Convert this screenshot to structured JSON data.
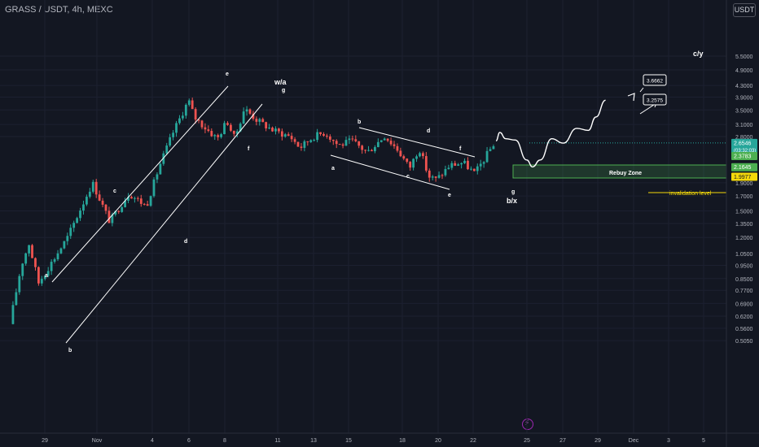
{
  "header": {
    "symbol_title": "GRASS / USDT, 4h, MEXC",
    "currency_button": "USDT"
  },
  "icons": {
    "event_marker": "bolt-icon"
  },
  "colors": {
    "background": "#131722",
    "grid": "#1c2030",
    "up_candle": "#26a69a",
    "down_candle": "#ef5350",
    "rebuy_zone": "#4caf50",
    "invalidation": "#f5d90a",
    "current_price": "#26a69a",
    "annotation": "#ffffff"
  },
  "chart_data": {
    "type": "candlestick",
    "scale": "log",
    "grid": true,
    "x_ticks": [
      "29",
      "Nov",
      "4",
      "6",
      "8",
      "11",
      "13",
      "15",
      "18",
      "20",
      "22",
      "25",
      "27",
      "29",
      "Dec",
      "3",
      "5"
    ],
    "y_ticks": [
      5.5,
      4.9,
      4.3,
      3.9,
      3.5,
      3.1,
      2.8,
      1.9,
      1.7,
      1.5,
      1.35,
      1.2,
      1.05,
      0.95,
      0.85,
      0.77,
      0.69,
      0.62,
      0.56,
      0.505
    ],
    "y_tick_labels": [
      "5.5000",
      "4.9000",
      "4.3000",
      "3.9000",
      "3.5000",
      "3.1000",
      "2.8000",
      "1.9000",
      "1.7000",
      "1.5000",
      "1.3500",
      "1.2000",
      "1.0500",
      "0.9500",
      "0.8500",
      "0.7700",
      "0.6900",
      "0.6200",
      "0.5600",
      "0.5050"
    ],
    "ylim": [
      0.48,
      6.1
    ],
    "price_badges": [
      {
        "label": "2.6546",
        "sub": "03:32:03",
        "value": 2.6546,
        "color": "#26a69a"
      },
      {
        "label": "2.3783",
        "value": 2.3783,
        "color": "#4caf50"
      },
      {
        "label": "2.1645",
        "value": 2.1645,
        "color": "#4caf50"
      },
      {
        "label": "1.9977",
        "value": 1.9977,
        "color": "#f5d90a"
      }
    ],
    "zones": [
      {
        "label": "Rebuy Zone",
        "from": 2.1645,
        "to": 2.3783,
        "color": "#4caf50"
      }
    ],
    "levels": [
      {
        "label": "invalidation level",
        "value": 1.9977,
        "color": "#f5d90a"
      }
    ],
    "targets": [
      "3.6662",
      "3.2575"
    ],
    "wave_labels": [
      "a",
      "b",
      "c",
      "d",
      "e",
      "w/a",
      "g",
      "f",
      "a",
      "b",
      "c",
      "d",
      "e",
      "f",
      "g",
      "b/x",
      "c/y"
    ],
    "anchors": [
      {
        "d": 0,
        "v": 0.58
      },
      {
        "d": 0.6,
        "v": 0.95
      },
      {
        "d": 1.0,
        "v": 1.14
      },
      {
        "d": 1.5,
        "v": 0.82
      },
      {
        "d": 3.0,
        "v": 1.2
      },
      {
        "d": 4.3,
        "v": 1.9
      },
      {
        "d": 5.2,
        "v": 1.37
      },
      {
        "d": 6.2,
        "v": 1.74
      },
      {
        "d": 7.1,
        "v": 1.56
      },
      {
        "d": 7.8,
        "v": 2.2
      },
      {
        "d": 8.5,
        "v": 2.9
      },
      {
        "d": 9.3,
        "v": 3.8
      },
      {
        "d": 9.6,
        "v": 3.3
      },
      {
        "d": 10.2,
        "v": 3.0
      },
      {
        "d": 10.8,
        "v": 2.75
      },
      {
        "d": 11.3,
        "v": 3.2
      },
      {
        "d": 11.7,
        "v": 2.75
      },
      {
        "d": 12.2,
        "v": 3.55
      },
      {
        "d": 12.9,
        "v": 3.2
      },
      {
        "d": 13.7,
        "v": 2.95
      },
      {
        "d": 14.6,
        "v": 2.8
      },
      {
        "d": 15.1,
        "v": 2.55
      },
      {
        "d": 15.8,
        "v": 2.8
      },
      {
        "d": 16.4,
        "v": 2.9
      },
      {
        "d": 17.1,
        "v": 2.6
      },
      {
        "d": 17.8,
        "v": 2.7
      },
      {
        "d": 18.6,
        "v": 2.45
      },
      {
        "d": 19.5,
        "v": 2.82
      },
      {
        "d": 20.2,
        "v": 2.5
      },
      {
        "d": 20.8,
        "v": 2.15
      },
      {
        "d": 21.3,
        "v": 2.55
      },
      {
        "d": 21.8,
        "v": 2.0
      },
      {
        "d": 22.2,
        "v": 1.95
      },
      {
        "d": 22.9,
        "v": 2.2
      },
      {
        "d": 23.6,
        "v": 2.25
      },
      {
        "d": 24.2,
        "v": 2.05
      },
      {
        "d": 25.2,
        "v": 2.65
      }
    ],
    "projection": [
      {
        "d": 25.3,
        "v": 2.7
      },
      {
        "d": 25.5,
        "v": 2.9
      },
      {
        "d": 25.8,
        "v": 2.75
      },
      {
        "d": 26.3,
        "v": 2.72
      },
      {
        "d": 26.9,
        "v": 2.3
      },
      {
        "d": 27.2,
        "v": 2.17
      },
      {
        "d": 27.6,
        "v": 2.3
      },
      {
        "d": 28.2,
        "v": 2.75
      },
      {
        "d": 28.8,
        "v": 2.65
      },
      {
        "d": 29.5,
        "v": 3.0
      },
      {
        "d": 30.1,
        "v": 2.95
      },
      {
        "d": 30.5,
        "v": 3.3
      },
      {
        "d": 31.0,
        "v": 3.8
      }
    ]
  }
}
